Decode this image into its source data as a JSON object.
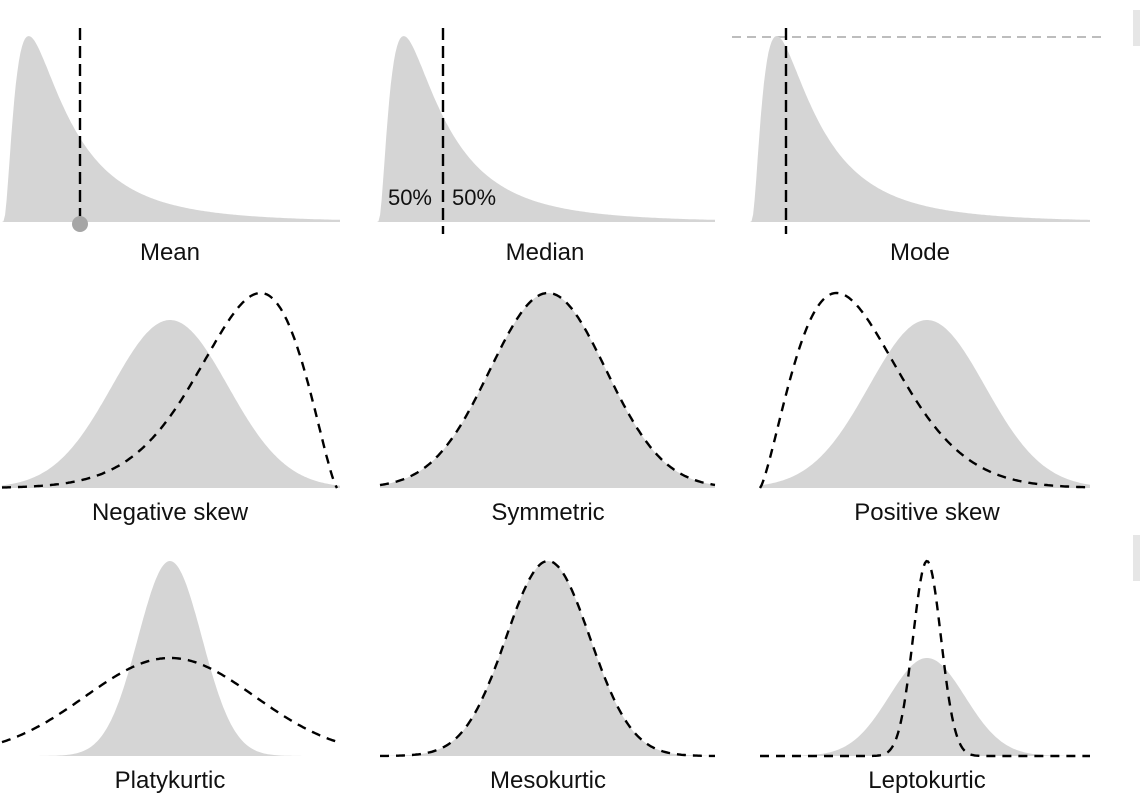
{
  "panels": {
    "mean": {
      "label": "Mean"
    },
    "median": {
      "label": "Median",
      "left_pct": "50%",
      "right_pct": "50%"
    },
    "mode": {
      "label": "Mode"
    },
    "negative_skew": {
      "label": "Negative skew"
    },
    "symmetric": {
      "label": "Symmetric"
    },
    "positive_skew": {
      "label": "Positive skew"
    },
    "platykurtic": {
      "label": "Platykurtic"
    },
    "mesokurtic": {
      "label": "Mesokurtic"
    },
    "leptokurtic": {
      "label": "Leptokurtic"
    }
  },
  "colors": {
    "fill": "#d5d5d5",
    "dashed_line": "#000000",
    "mean_marker": "#a6a6a6",
    "mode_reference_line": "#bdbdbd"
  }
}
